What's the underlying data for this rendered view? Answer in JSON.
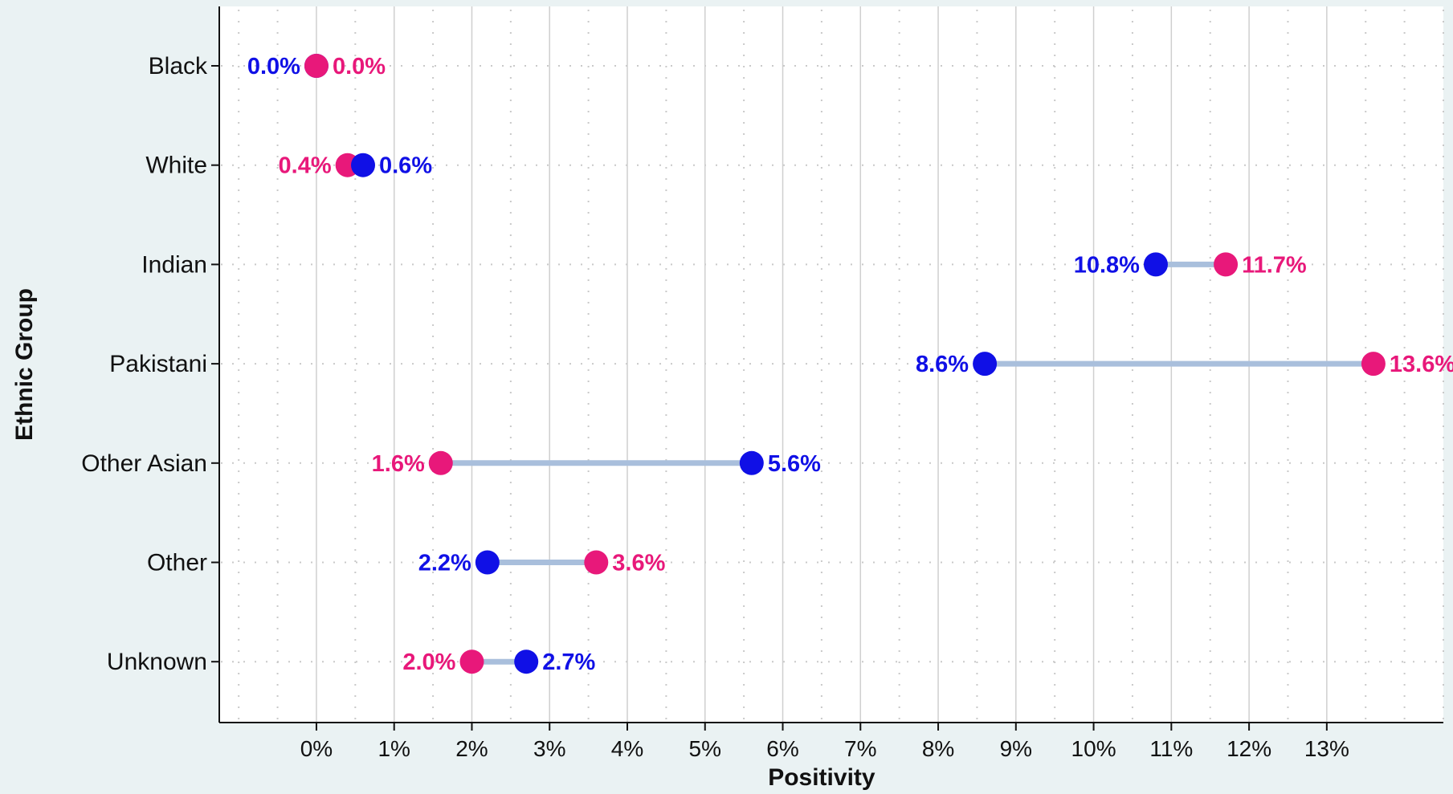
{
  "chart_data": {
    "type": "dumbbell",
    "title": "",
    "xlabel": "Positivity",
    "ylabel": "Ethnic Group",
    "categories": [
      "Black",
      "White",
      "Indian",
      "Pakistani",
      "Other Asian",
      "Other",
      "Unknown"
    ],
    "series": [
      {
        "color": "#1010e6",
        "values": [
          0.0,
          0.6,
          10.8,
          8.6,
          5.6,
          2.2,
          2.7
        ],
        "labels": [
          "0.0%",
          "0.6%",
          "10.8%",
          "8.6%",
          "5.6%",
          "2.2%",
          "2.7%"
        ]
      },
      {
        "color": "#e8187a",
        "values": [
          0.0,
          0.4,
          11.7,
          13.6,
          1.6,
          3.6,
          2.0
        ],
        "labels": [
          "0.0%",
          "0.4%",
          "11.7%",
          "13.6%",
          "1.6%",
          "3.6%",
          "2.0%"
        ]
      }
    ],
    "xticks": [
      0,
      1,
      2,
      3,
      4,
      5,
      6,
      7,
      8,
      9,
      10,
      11,
      12,
      13
    ],
    "xtick_labels": [
      "0%",
      "1%",
      "2%",
      "3%",
      "4%",
      "5%",
      "6%",
      "7%",
      "8%",
      "9%",
      "10%",
      "11%",
      "12%",
      "13%"
    ],
    "xlim": [
      -1.25,
      14.5
    ],
    "grid": true,
    "legend": "none",
    "colors": {
      "background": "#eaf2f3",
      "plot_background": "#ffffff",
      "connector": "#a9bfdc",
      "grid": "#cfcfcf"
    }
  }
}
